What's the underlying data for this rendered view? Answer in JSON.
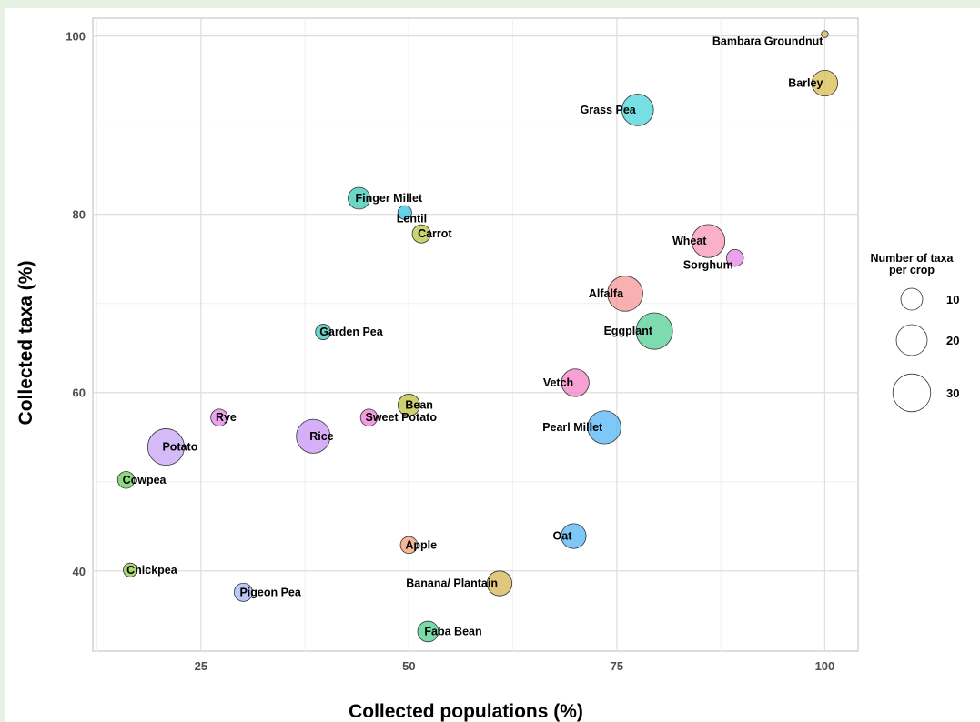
{
  "chart_data": {
    "type": "scatter",
    "xlabel": "Collected populations (%)",
    "ylabel": "Collected taxa (%)",
    "xlim": [
      12,
      104
    ],
    "ylim": [
      31,
      102
    ],
    "xticks": [
      25,
      50,
      75,
      100
    ],
    "yticks": [
      40,
      60,
      80,
      100
    ],
    "grid": true,
    "legend": {
      "title_lines": [
        "Number of taxa",
        "per crop"
      ],
      "entries": [
        10,
        20,
        30
      ],
      "placement": "right"
    },
    "points": [
      {
        "label": "Bambara Groundnut",
        "x": 100,
        "y": 100.2,
        "size": 1,
        "color": "#d6b75a",
        "label_pos": "left-below"
      },
      {
        "label": "Barley",
        "x": 100,
        "y": 94.7,
        "size": 14,
        "color": "#d9bf55",
        "label_pos": "left"
      },
      {
        "label": "Grass Pea",
        "x": 77.5,
        "y": 91.7,
        "size": 21,
        "color": "#4fd6dc",
        "label_pos": "left"
      },
      {
        "label": "Finger Millet",
        "x": 44,
        "y": 81.8,
        "size": 10,
        "color": "#41c9b8",
        "label_pos": "right"
      },
      {
        "label": "Lentil",
        "x": 49.5,
        "y": 80.2,
        "size": 4,
        "color": "#38c8e6",
        "label_pos": "right-below"
      },
      {
        "label": "Carrot",
        "x": 51.5,
        "y": 77.8,
        "size": 7,
        "color": "#b9c94a",
        "label_pos": "right"
      },
      {
        "label": "Wheat",
        "x": 86,
        "y": 77.0,
        "size": 23,
        "color": "#f79ab8",
        "label_pos": "left"
      },
      {
        "label": "Sorghum",
        "x": 89.2,
        "y": 75.1,
        "size": 6,
        "color": "#e888e8",
        "label_pos": "left-below"
      },
      {
        "label": "Alfalfa",
        "x": 76,
        "y": 71.1,
        "size": 26,
        "color": "#f79a9a",
        "label_pos": "left"
      },
      {
        "label": "Eggplant",
        "x": 79.5,
        "y": 66.9,
        "size": 28,
        "color": "#5ad19a",
        "label_pos": "left"
      },
      {
        "label": "Garden Pea",
        "x": 39.7,
        "y": 66.8,
        "size": 5,
        "color": "#41c9b8",
        "label_pos": "right"
      },
      {
        "label": "Vetch",
        "x": 70,
        "y": 61.1,
        "size": 16,
        "color": "#f585c8",
        "label_pos": "left"
      },
      {
        "label": "Bean",
        "x": 50,
        "y": 58.6,
        "size": 10,
        "color": "#c2c24a",
        "label_pos": "right"
      },
      {
        "label": "Sweet Potato",
        "x": 45.2,
        "y": 57.2,
        "size": 6,
        "color": "#ee7fd9",
        "label_pos": "right"
      },
      {
        "label": "Rye",
        "x": 27.2,
        "y": 57.2,
        "size": 6,
        "color": "#e888e8",
        "label_pos": "right"
      },
      {
        "label": "Pearl Millet",
        "x": 73.5,
        "y": 56.1,
        "size": 23,
        "color": "#58b9f5",
        "label_pos": "left"
      },
      {
        "label": "Rice",
        "x": 38.5,
        "y": 55.1,
        "size": 24,
        "color": "#cc98f5",
        "label_pos": "right"
      },
      {
        "label": "Potato",
        "x": 20.8,
        "y": 53.9,
        "size": 28,
        "color": "#c8a8f5",
        "label_pos": "right"
      },
      {
        "label": "Cowpea",
        "x": 16,
        "y": 50.2,
        "size": 6,
        "color": "#6fcd5a",
        "label_pos": "right"
      },
      {
        "label": "Oat",
        "x": 69.8,
        "y": 43.9,
        "size": 13,
        "color": "#58b9f5",
        "label_pos": "left"
      },
      {
        "label": "Apple",
        "x": 50,
        "y": 42.9,
        "size": 6,
        "color": "#f2a07a",
        "label_pos": "right"
      },
      {
        "label": "Chickpea",
        "x": 16.5,
        "y": 40.1,
        "size": 4,
        "color": "#95cc52",
        "label_pos": "right"
      },
      {
        "label": "Banana/ Plantain",
        "x": 60.9,
        "y": 38.6,
        "size": 13,
        "color": "#d6b75a",
        "label_pos": "left"
      },
      {
        "label": "Pigeon Pea",
        "x": 30.1,
        "y": 37.6,
        "size": 7,
        "color": "#a9b9f5",
        "label_pos": "right"
      },
      {
        "label": "Faba Bean",
        "x": 52.3,
        "y": 33.2,
        "size": 9,
        "color": "#55cf8f",
        "label_pos": "right"
      }
    ]
  }
}
